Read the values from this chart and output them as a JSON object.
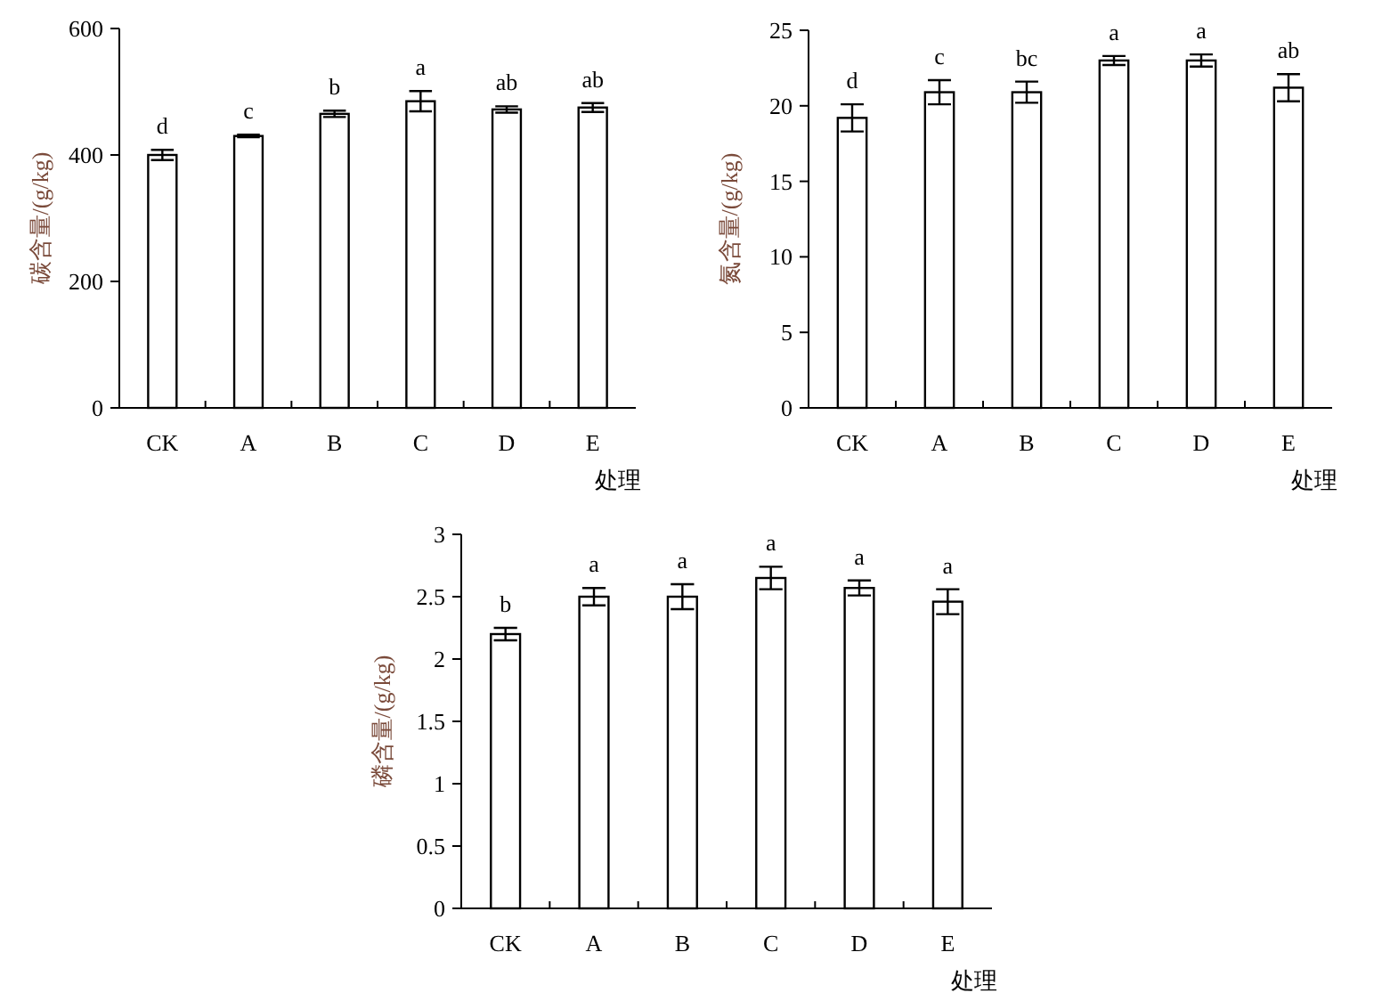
{
  "chart_data": [
    {
      "type": "bar",
      "ylabel": "碳含量/(g/kg)",
      "xlabel": "处理",
      "categories": [
        "CK",
        "A",
        "B",
        "C",
        "D",
        "E"
      ],
      "ylim": [
        0,
        600
      ],
      "yticks": [
        0,
        200,
        400,
        600
      ],
      "series": [
        {
          "color": "#ffffff",
          "values": [
            400,
            430,
            465,
            485,
            472,
            475
          ],
          "errors": [
            8,
            2,
            5,
            16,
            5,
            7
          ]
        }
      ],
      "annotations": [
        "d",
        "c",
        "b",
        "a",
        "ab",
        "ab"
      ]
    },
    {
      "type": "bar",
      "ylabel": "氮含量/(g/kg)",
      "xlabel": "处理",
      "categories": [
        "CK",
        "A",
        "B",
        "C",
        "D",
        "E"
      ],
      "ylim": [
        0,
        25
      ],
      "yticks": [
        0,
        5,
        10,
        15,
        20,
        25
      ],
      "series": [
        {
          "color": "#ffffff",
          "values": [
            19.2,
            20.9,
            20.9,
            23.0,
            23.0,
            21.2
          ],
          "errors": [
            0.9,
            0.8,
            0.7,
            0.3,
            0.4,
            0.9
          ]
        }
      ],
      "annotations": [
        "d",
        "c",
        "bc",
        "a",
        "a",
        "ab"
      ]
    },
    {
      "type": "bar",
      "ylabel": "磷含量/(g/kg)",
      "xlabel": "处理",
      "categories": [
        "CK",
        "A",
        "B",
        "C",
        "D",
        "E"
      ],
      "ylim": [
        0,
        3
      ],
      "yticks": [
        0,
        {
          "value": 0.5,
          "label": "0.5"
        },
        1,
        {
          "value": 1.5,
          "label": "1.5"
        },
        2,
        {
          "value": 2.5,
          "label": "2.5"
        },
        3
      ],
      "series": [
        {
          "color": "#ffffff",
          "values": [
            2.2,
            2.5,
            2.5,
            2.65,
            2.57,
            2.46
          ],
          "errors": [
            0.05,
            0.07,
            0.1,
            0.09,
            0.06,
            0.1
          ]
        }
      ],
      "annotations": [
        "b",
        "a",
        "a",
        "a",
        "a",
        "a"
      ]
    }
  ]
}
